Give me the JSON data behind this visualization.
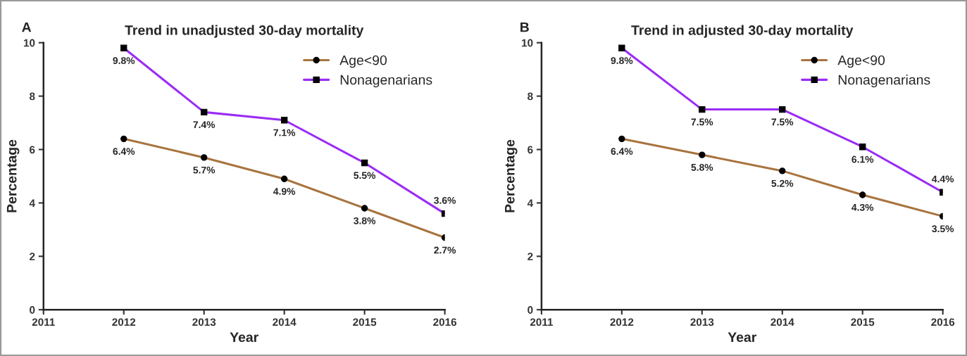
{
  "chart_data": [
    {
      "type": "line",
      "title": "Trend in unadjusted 30-day mortality",
      "xlabel": "Year",
      "ylabel": "Percentage",
      "annotations": [
        "A"
      ],
      "x": [
        2012,
        2013,
        2014,
        2015,
        2016
      ],
      "xlim": [
        2011,
        2016
      ],
      "xticks": [
        2011,
        2012,
        2013,
        2014,
        2015,
        2016
      ],
      "ylim": [
        0,
        10
      ],
      "yticks": [
        0,
        2,
        4,
        6,
        8,
        10
      ],
      "grid": false,
      "legend": "top right",
      "series": [
        {
          "name": "Age<90",
          "color": "#a8743e",
          "marker": "circle",
          "values": [
            6.4,
            5.7,
            4.9,
            3.8,
            2.7
          ],
          "value_labels": [
            "6.4%",
            "5.7%",
            "4.9%",
            "3.8%",
            "2.7%"
          ]
        },
        {
          "name": "Nonagenarians",
          "color": "#9b2cf5",
          "marker": "square",
          "values": [
            9.8,
            7.4,
            7.1,
            5.5,
            3.6
          ],
          "value_labels": [
            "9.8%",
            "7.4%",
            "7.1%",
            "5.5%",
            "3.6%"
          ]
        }
      ]
    },
    {
      "type": "line",
      "title": "Trend in adjusted 30-day mortality",
      "xlabel": "Year",
      "ylabel": "Percentage",
      "annotations": [
        "B"
      ],
      "x": [
        2012,
        2013,
        2014,
        2015,
        2016
      ],
      "xlim": [
        2011,
        2016
      ],
      "xticks": [
        2011,
        2012,
        2013,
        2014,
        2015,
        2016
      ],
      "ylim": [
        0,
        10
      ],
      "yticks": [
        0,
        2,
        4,
        6,
        8,
        10
      ],
      "grid": false,
      "legend": "top right",
      "series": [
        {
          "name": "Age<90",
          "color": "#a8743e",
          "marker": "circle",
          "values": [
            6.4,
            5.8,
            5.2,
            4.3,
            3.5
          ],
          "value_labels": [
            "6.4%",
            "5.8%",
            "5.2%",
            "4.3%",
            "3.5%"
          ]
        },
        {
          "name": "Nonagenarians",
          "color": "#9b2cf5",
          "marker": "square",
          "values": [
            9.8,
            7.5,
            7.5,
            6.1,
            4.4
          ],
          "value_labels": [
            "9.8%",
            "7.5%",
            "7.5%",
            "6.1%",
            "4.4%"
          ]
        }
      ]
    }
  ]
}
